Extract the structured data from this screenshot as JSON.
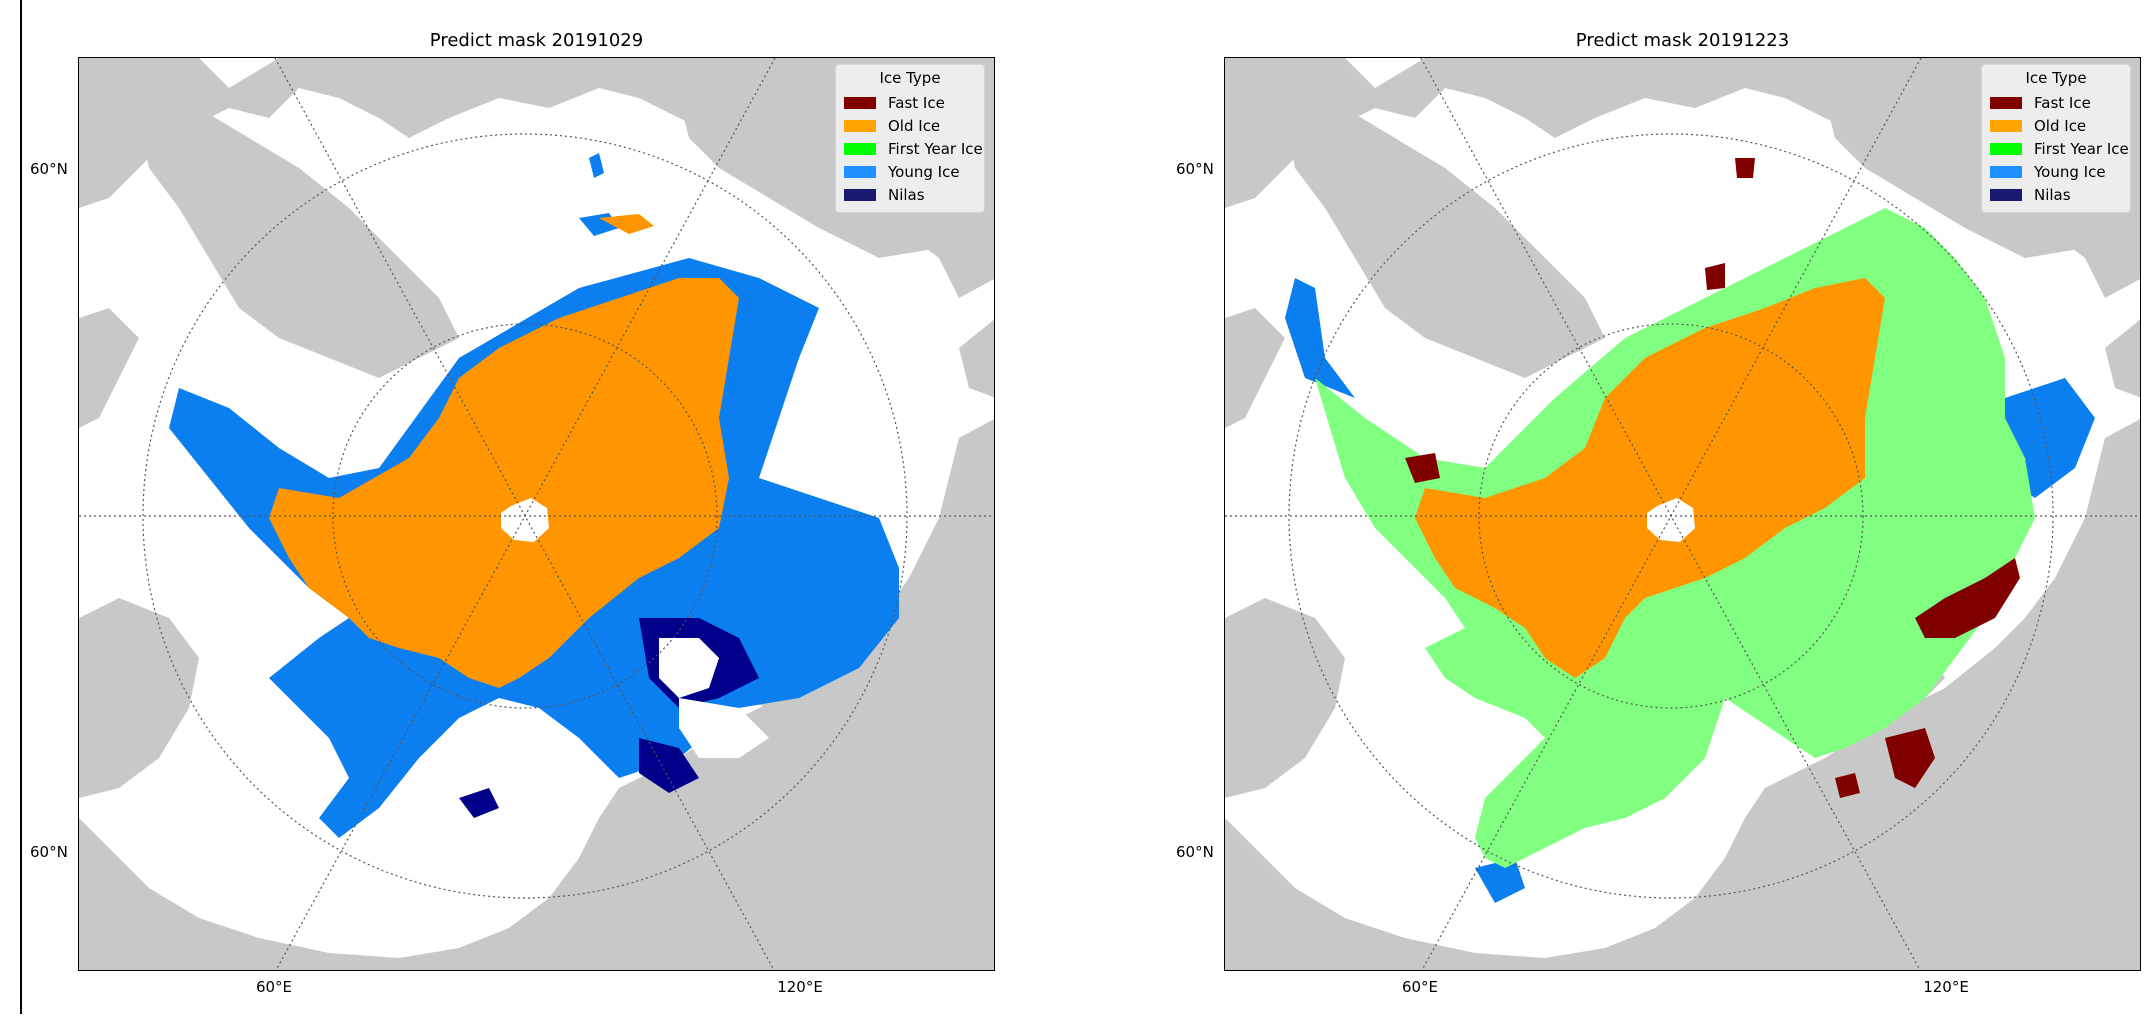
{
  "legend": {
    "title": "Ice Type",
    "items": [
      {
        "label": "Fast Ice",
        "color": "#800000"
      },
      {
        "label": "Old Ice",
        "color": "#FFA500"
      },
      {
        "label": "First Year Ice",
        "color": "#00FF00"
      },
      {
        "label": "Young Ice",
        "color": "#1E90FF"
      },
      {
        "label": "Nilas",
        "color": "#191970"
      }
    ]
  },
  "colors": {
    "land": "#c8c8c8",
    "ocean": "#ffffff",
    "old_ice": "#ff9500",
    "first_year_ice_rendered": "#80ff80",
    "young_ice": "#0b7ef0",
    "nilas": "#00008b",
    "fast_ice": "#800000"
  },
  "panels": [
    {
      "title": "Predict mask 20191029",
      "lat_labels": [
        "60°N",
        "60°N"
      ],
      "lon_labels": [
        "60°E",
        "120°E"
      ]
    },
    {
      "title": "Predict mask 20191223",
      "lat_labels": [
        "60°N",
        "60°N"
      ],
      "lon_labels": [
        "60°E",
        "120°E"
      ]
    }
  ]
}
